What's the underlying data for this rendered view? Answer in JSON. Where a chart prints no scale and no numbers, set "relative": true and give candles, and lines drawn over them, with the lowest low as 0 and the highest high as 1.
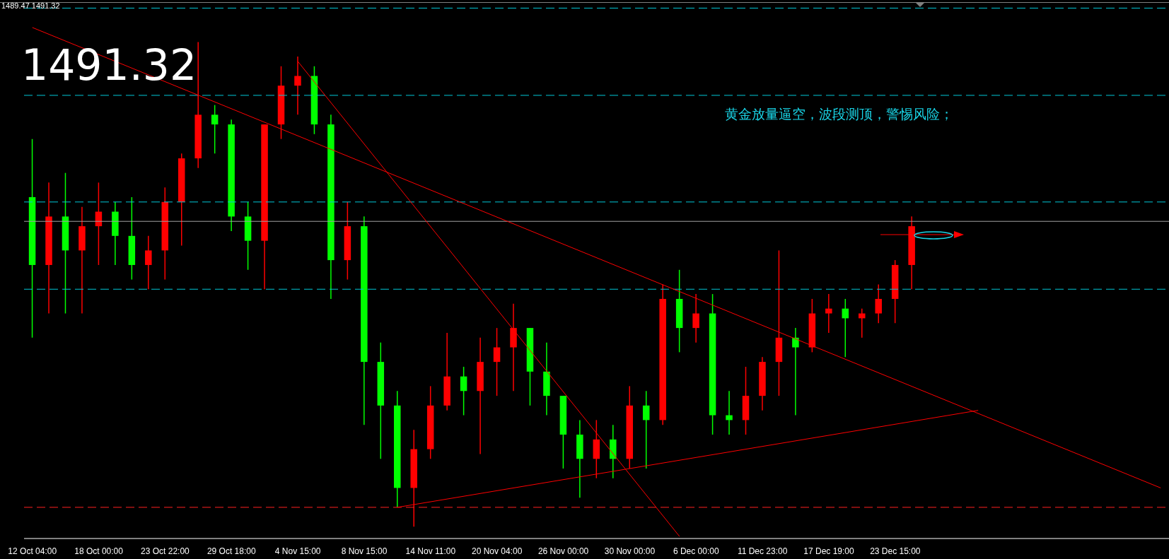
{
  "chart_data": {
    "type": "candlestick",
    "relative": true,
    "categories": [
      "12 Oct 04:00",
      null,
      null,
      null,
      "18 Oct 00:00",
      null,
      null,
      null,
      "23 Oct 22:00",
      null,
      null,
      null,
      "29 Oct 18:00",
      null,
      null,
      null,
      "4 Nov 15:00",
      null,
      null,
      null,
      "8 Nov 15:00",
      null,
      null,
      null,
      "14 Nov 11:00",
      null,
      null,
      null,
      "20 Nov 04:00",
      null,
      null,
      null,
      "26 Nov 00:00",
      null,
      null,
      null,
      "30 Nov 00:00",
      null,
      null,
      null,
      "6 Dec 00:00",
      null,
      null,
      null,
      "11 Dec 23:00",
      null,
      null,
      null,
      "17 Dec 19:00",
      null,
      null,
      null,
      "23 Dec 15:00",
      null,
      null,
      null,
      null,
      null,
      null,
      null,
      null,
      null,
      null,
      null,
      null,
      null,
      null,
      null,
      null
    ],
    "ohlc": [
      [
        0.68,
        0.8,
        0.39,
        0.54
      ],
      [
        0.54,
        0.71,
        0.44,
        0.64
      ],
      [
        0.64,
        0.73,
        0.44,
        0.57
      ],
      [
        0.57,
        0.66,
        0.44,
        0.62
      ],
      [
        0.62,
        0.71,
        0.54,
        0.65
      ],
      [
        0.65,
        0.67,
        0.54,
        0.6
      ],
      [
        0.6,
        0.68,
        0.51,
        0.54
      ],
      [
        0.54,
        0.6,
        0.49,
        0.57
      ],
      [
        0.57,
        0.7,
        0.51,
        0.67
      ],
      [
        0.67,
        0.77,
        0.58,
        0.76
      ],
      [
        0.76,
        1,
        0.74,
        0.85
      ],
      [
        0.85,
        0.87,
        0.77,
        0.83
      ],
      [
        0.83,
        0.84,
        0.61,
        0.64
      ],
      [
        0.64,
        0.67,
        0.53,
        0.59
      ],
      [
        0.59,
        0.83,
        0.49,
        0.83
      ],
      [
        0.83,
        0.95,
        0.8,
        0.91
      ],
      [
        0.91,
        0.97,
        0.85,
        0.93
      ],
      [
        0.93,
        0.95,
        0.81,
        0.83
      ],
      [
        0.83,
        0.85,
        0.47,
        0.55
      ],
      [
        0.55,
        0.67,
        0.51,
        0.62
      ],
      [
        0.62,
        0.64,
        0.21,
        0.34
      ],
      [
        0.34,
        0.38,
        0.14,
        0.25
      ],
      [
        0.25,
        0.28,
        0.04,
        0.08
      ],
      [
        0.08,
        0.2,
        0,
        0.16
      ],
      [
        0.16,
        0.29,
        0.14,
        0.25
      ],
      [
        0.25,
        0.4,
        0.24,
        0.31
      ],
      [
        0.31,
        0.33,
        0.23,
        0.28
      ],
      [
        0.28,
        0.39,
        0.15,
        0.34
      ],
      [
        0.34,
        0.41,
        0.27,
        0.37
      ],
      [
        0.37,
        0.46,
        0.28,
        0.41
      ],
      [
        0.41,
        0.41,
        0.25,
        0.32
      ],
      [
        0.32,
        0.38,
        0.23,
        0.27
      ],
      [
        0.27,
        0.27,
        0.12,
        0.19
      ],
      [
        0.19,
        0.22,
        0.06,
        0.14
      ],
      [
        0.14,
        0.22,
        0.1,
        0.18
      ],
      [
        0.18,
        0.21,
        0.1,
        0.14
      ],
      [
        0.14,
        0.29,
        0.12,
        0.25
      ],
      [
        0.25,
        0.28,
        0.12,
        0.22
      ],
      [
        0.22,
        0.5,
        0.21,
        0.47
      ],
      [
        0.47,
        0.53,
        0.36,
        0.41
      ],
      [
        0.41,
        0.48,
        0.38,
        0.44
      ],
      [
        0.44,
        0.48,
        0.19,
        0.23
      ],
      [
        0.23,
        0.28,
        0.19,
        0.22
      ],
      [
        0.22,
        0.33,
        0.19,
        0.27
      ],
      [
        0.27,
        0.35,
        0.24,
        0.34
      ],
      [
        0.34,
        0.57,
        0.27,
        0.39
      ],
      [
        0.39,
        0.41,
        0.23,
        0.37
      ],
      [
        0.37,
        0.47,
        0.36,
        0.44
      ],
      [
        0.44,
        0.48,
        0.4,
        0.45
      ],
      [
        0.45,
        0.47,
        0.35,
        0.43
      ],
      [
        0.43,
        0.45,
        0.39,
        0.44
      ],
      [
        0.44,
        0.5,
        0.42,
        0.47
      ],
      [
        0.47,
        0.55,
        0.42,
        0.54
      ],
      [
        0.54,
        0.64,
        0.49,
        0.62
      ],
      null,
      null,
      null,
      null,
      null,
      null,
      null,
      null,
      null,
      null,
      null,
      null,
      null,
      null,
      null
    ],
    "colors": [
      "#00ff00",
      "#ff0000",
      "#00ff00",
      "#ff0000",
      "#ff0000",
      "#00ff00",
      "#00ff00",
      "#ff0000",
      "#ff0000",
      "#ff0000",
      "#ff0000",
      "#00ff00",
      "#00ff00",
      "#00ff00",
      "#ff0000",
      "#ff0000",
      "#ff0000",
      "#00ff00",
      "#00ff00",
      "#ff0000",
      "#00ff00",
      "#00ff00",
      "#00ff00",
      "#ff0000",
      "#ff0000",
      "#ff0000",
      "#00ff00",
      "#ff0000",
      "#ff0000",
      "#ff0000",
      "#00ff00",
      "#00ff00",
      "#00ff00",
      "#00ff00",
      "#ff0000",
      "#00ff00",
      "#ff0000",
      "#00ff00",
      "#ff0000",
      "#00ff00",
      "#ff0000",
      "#00ff00",
      "#00ff00",
      "#ff0000",
      "#ff0000",
      "#ff0000",
      "#00ff00",
      "#ff0000",
      "#ff0000",
      "#00ff00",
      "#ff0000",
      "#ff0000",
      "#ff0000",
      "#ff0000",
      null,
      null,
      null,
      null,
      null,
      null,
      null,
      null,
      null,
      null,
      null,
      null,
      null,
      null,
      null
    ],
    "series": [
      {
        "type": "line",
        "color": "#ff0000",
        "values": [
          1.03,
          null,
          null,
          null,
          null,
          null,
          null,
          null,
          null,
          null,
          null,
          null,
          null,
          null,
          null,
          null,
          null,
          null,
          null,
          null,
          null,
          null,
          null,
          null,
          null,
          null,
          null,
          null,
          null,
          null,
          null,
          null,
          null,
          null,
          null,
          null,
          null,
          null,
          null,
          null,
          null,
          null,
          null,
          null,
          null,
          null,
          null,
          null,
          null,
          null,
          null,
          null,
          null,
          null,
          null,
          null,
          null,
          null,
          null,
          null,
          null,
          null,
          null,
          null,
          null,
          null,
          null,
          null,
          0.08
        ]
      },
      {
        "type": "line",
        "color": "#ff0000",
        "values": [
          null,
          null,
          null,
          null,
          null,
          null,
          null,
          null,
          null,
          null,
          null,
          null,
          null,
          null,
          null,
          null,
          0.96,
          null,
          null,
          null,
          null,
          null,
          null,
          null,
          null,
          null,
          null,
          null,
          null,
          null,
          null,
          null,
          null,
          null,
          null,
          null,
          null,
          null,
          null,
          -0.02,
          null,
          null,
          null,
          null,
          null,
          null,
          null,
          null,
          null,
          null,
          null,
          null,
          null,
          null,
          null,
          null,
          null,
          null,
          null,
          null,
          null,
          null,
          null,
          null,
          null,
          null,
          null,
          null,
          null
        ]
      },
      {
        "type": "line",
        "color": "#ff0000",
        "values": [
          null,
          null,
          null,
          null,
          null,
          null,
          null,
          null,
          null,
          null,
          null,
          null,
          null,
          null,
          null,
          null,
          null,
          null,
          null,
          null,
          null,
          null,
          0.04,
          null,
          null,
          null,
          null,
          null,
          null,
          null,
          null,
          null,
          null,
          null,
          null,
          null,
          null,
          null,
          null,
          null,
          null,
          null,
          null,
          null,
          null,
          null,
          null,
          null,
          null,
          null,
          null,
          null,
          null,
          null,
          null,
          null,
          null,
          0.24,
          null,
          null,
          null,
          null,
          null,
          null,
          null,
          null,
          null,
          null,
          null
        ]
      }
    ],
    "ref_lines": [
      {
        "axis": "y",
        "value": 1.07,
        "color": "#00c8d8",
        "line_style": "dashed"
      },
      {
        "axis": "y",
        "value": 0.89,
        "color": "#00c8d8",
        "line_style": "dashed"
      },
      {
        "axis": "y",
        "value": 0.67,
        "color": "#00c8d8",
        "line_style": "dashed"
      },
      {
        "axis": "y",
        "value": 0.63,
        "color": "#a0a0a0",
        "line_style": "solid"
      },
      {
        "axis": "y",
        "value": 0.49,
        "color": "#00c8d8",
        "line_style": "dashed"
      },
      {
        "axis": "y",
        "value": 0.04,
        "color": "#ff2020",
        "line_style": "dashed"
      }
    ],
    "annotations": [
      "1489.47 1491.32",
      "1491.32",
      "黄金放量逼空，波段测顶，警惕风险；"
    ]
  }
}
